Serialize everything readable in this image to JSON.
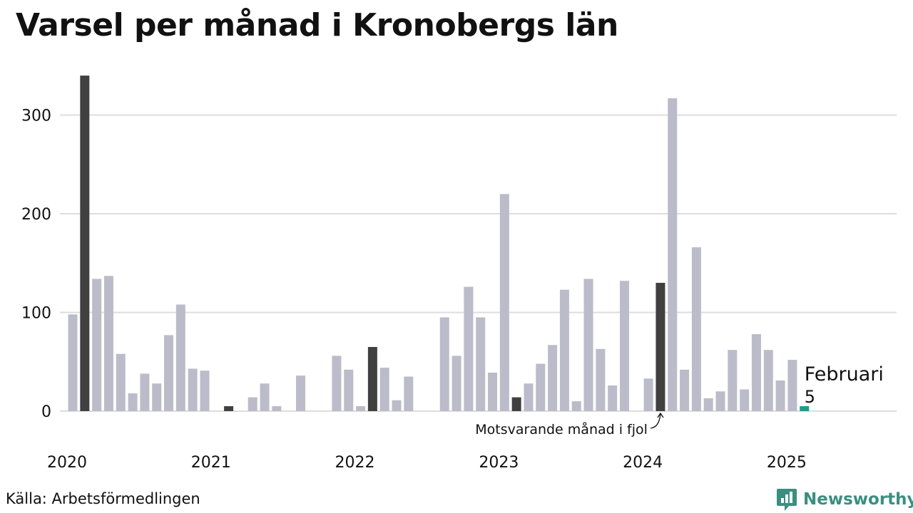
{
  "title": "Varsel per månad i Kronobergs län",
  "source": "Källa: Arbetsförmedlingen",
  "brand": "Newsworthy",
  "colors": {
    "bar": "#bcbbca",
    "highlight": "#404040",
    "current": "#1f9c87",
    "grid": "#dddddd",
    "brand": "#3a8f80"
  },
  "chart_data": {
    "type": "bar",
    "title": "Varsel per månad i Kronobergs län",
    "xlabel": "",
    "ylabel": "",
    "ylim": [
      0,
      340
    ],
    "yticks": [
      0,
      100,
      200,
      300
    ],
    "x_tick_labels": [
      "2020",
      "2021",
      "2022",
      "2023",
      "2024",
      "2025"
    ],
    "grid": true,
    "categories": [
      "2020-01",
      "2020-02",
      "2020-03",
      "2020-04",
      "2020-05",
      "2020-06",
      "2020-07",
      "2020-08",
      "2020-09",
      "2020-10",
      "2020-11",
      "2020-12",
      "2021-01",
      "2021-02",
      "2021-03",
      "2021-04",
      "2021-05",
      "2021-06",
      "2021-07",
      "2021-08",
      "2021-09",
      "2021-10",
      "2021-11",
      "2021-12",
      "2022-01",
      "2022-02",
      "2022-03",
      "2022-04",
      "2022-05",
      "2022-06",
      "2022-07",
      "2022-08",
      "2022-09",
      "2022-10",
      "2022-11",
      "2022-12",
      "2023-01",
      "2023-02",
      "2023-03",
      "2023-04",
      "2023-05",
      "2023-06",
      "2023-07",
      "2023-08",
      "2023-09",
      "2023-10",
      "2023-11",
      "2023-12",
      "2024-01",
      "2024-02",
      "2024-03",
      "2024-04",
      "2024-05",
      "2024-06",
      "2024-07",
      "2024-08",
      "2024-09",
      "2024-10",
      "2024-11",
      "2024-12",
      "2025-01",
      "2025-02"
    ],
    "values": [
      98,
      340,
      134,
      137,
      58,
      18,
      38,
      28,
      77,
      108,
      43,
      41,
      0,
      5,
      0,
      14,
      28,
      5,
      0,
      36,
      0,
      0,
      56,
      42,
      5,
      65,
      44,
      11,
      35,
      0,
      0,
      95,
      56,
      126,
      95,
      39,
      220,
      14,
      28,
      48,
      67,
      123,
      10,
      134,
      63,
      26,
      132,
      0,
      33,
      130,
      317,
      42,
      166,
      13,
      20,
      62,
      22,
      78,
      62,
      31,
      52,
      5
    ],
    "highlight_categories": [
      "2020-02",
      "2021-02",
      "2022-02",
      "2023-02",
      "2024-02"
    ],
    "current_category": "2025-02",
    "annotations": {
      "previous_year": "Motsvarande månad i fjol",
      "current_month": "Februari",
      "current_value": "5"
    }
  }
}
